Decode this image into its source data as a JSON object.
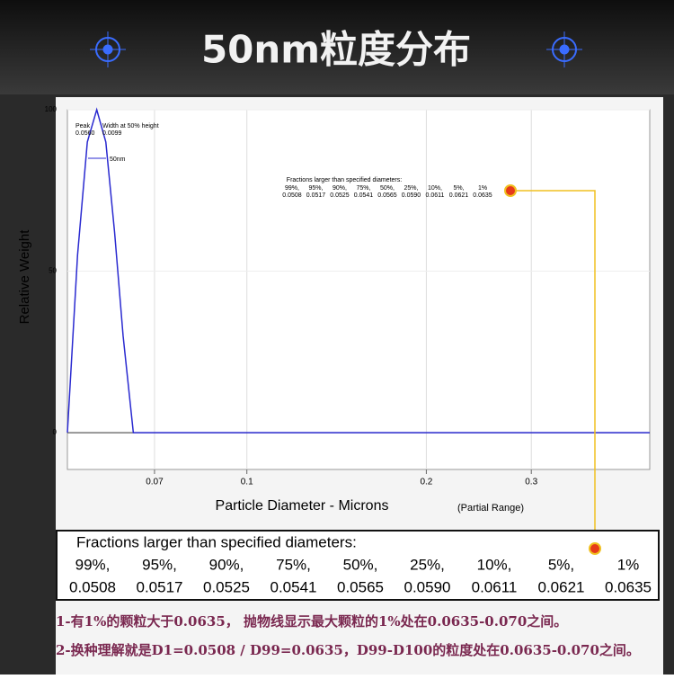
{
  "header": {
    "title": "50nm粒度分布"
  },
  "chart_data": {
    "type": "line",
    "x_scale": "log",
    "grid": true,
    "x_label": "Particle Diameter  -  Microns",
    "x_label_note": "(Partial Range)",
    "y_label": "Relative Weight",
    "annotations": [
      "Peak",
      "Width at 50% height",
      "0.0560",
      "0.0099"
    ],
    "series": [
      {
        "name": "50nm",
        "color": "#2a2ad0",
        "x": [
          0.05,
          0.052,
          0.054,
          0.056,
          0.058,
          0.06,
          0.062,
          0.0645,
          0.474
        ],
        "values": [
          0,
          55,
          90,
          100,
          90,
          62,
          30,
          0,
          0
        ]
      }
    ],
    "xlim": [
      0.05,
      0.474
    ],
    "xticks": [
      0.07,
      0.1,
      0.2,
      0.3
    ],
    "ylim": [
      -11.4,
      100
    ],
    "yticks": [
      0,
      50,
      100
    ]
  },
  "fractions_table": {
    "title": "Fractions larger than specified diameters:",
    "percents": [
      "99%,",
      "95%,",
      "90%,",
      "75%,",
      "50%,",
      "25%,",
      "10%,",
      "5%,",
      "1%"
    ],
    "diameters": [
      "0.0508",
      "0.0517",
      "0.0525",
      "0.0541",
      "0.0565",
      "0.0590",
      "0.0611",
      "0.0621",
      "0.0635"
    ]
  },
  "notes": [
    "1-有1%的颗粒大于0.0635， 抛物线显示最大颗粒的1%处在0.0635-0.070之间。",
    "2-换种理解就是D1=0.0508 / D99=0.0635，D99-D100的粒度处在0.0635-0.070之间。"
  ]
}
